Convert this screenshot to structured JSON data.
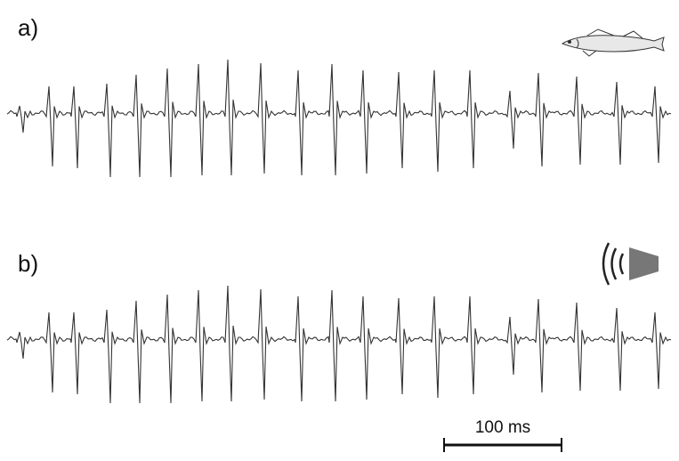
{
  "panels": [
    {
      "label": "a)"
    },
    {
      "label": "b)"
    }
  ],
  "scale_bar": {
    "label": "100 ms"
  }
}
